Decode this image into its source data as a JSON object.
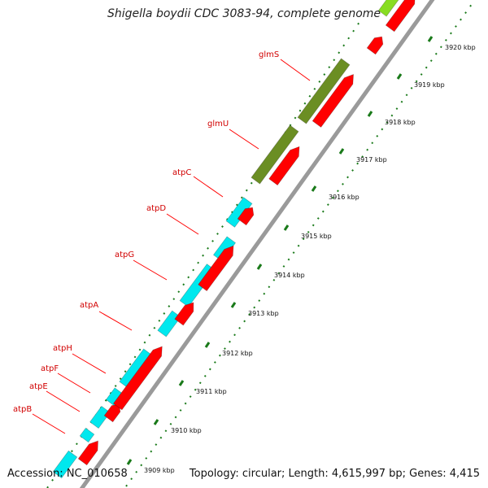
{
  "title": "Shigella boydii CDC 3083-94, complete genome",
  "footer": {
    "accession": "Accession: NC_010658",
    "summary": "Topology: circular; Length: 4,615,997 bp; Genes: 4,415"
  },
  "gene_labels": [
    "glmS",
    "glmU",
    "atpC",
    "atpD",
    "atpG",
    "atpA",
    "atpH",
    "atpF",
    "atpE",
    "atpB"
  ],
  "scale_labels": [
    "3909 kbp",
    "3910 kbp",
    "3911 kbp",
    "3912 kbp",
    "3913 kbp",
    "3914 kbp",
    "3915 kbp",
    "3916 kbp",
    "3917 kbp",
    "3918 kbp",
    "3919 kbp",
    "3920 kbp"
  ],
  "colors": {
    "cyan_gene": "#00e8ee",
    "olive_gene": "#6b8e23",
    "red_gene": "#ff0000",
    "lime_gene": "#88dd22",
    "backbone": "#9a9a9a",
    "tick": "#1a7a1a",
    "label": "#d10000"
  }
}
